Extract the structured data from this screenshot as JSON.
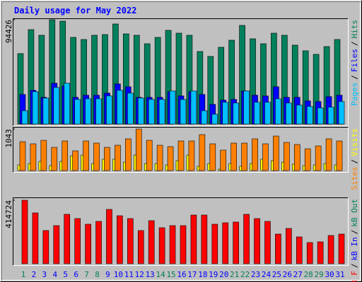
{
  "chart_data": {
    "type": "bar",
    "title": "Daily usage for May 2022",
    "categories": [
      "1",
      "2",
      "3",
      "4",
      "5",
      "6",
      "7",
      "8",
      "9",
      "10",
      "11",
      "12",
      "13",
      "14",
      "15",
      "16",
      "17",
      "18",
      "19",
      "20",
      "21",
      "22",
      "23",
      "24",
      "25",
      "26",
      "27",
      "28",
      "29",
      "30",
      "31"
    ],
    "category_colors": [
      "#00805c",
      "#0000ff",
      "#0000ff",
      "#0000ff",
      "#0000ff",
      "#0000ff",
      "#00805c",
      "#00805c",
      "#0000ff",
      "#0000ff",
      "#0000ff",
      "#0000ff",
      "#0000ff",
      "#00805c",
      "#00805c",
      "#0000ff",
      "#0000ff",
      "#0000ff",
      "#0000ff",
      "#0000ff",
      "#00805c",
      "#00805c",
      "#0000ff",
      "#0000ff",
      "#0000ff",
      "#0000ff",
      "#0000ff",
      "#00805c",
      "#00805c",
      "#0000ff",
      "#0000ff"
    ],
    "legend_separator": "/",
    "panels": [
      {
        "ylim": [
          0,
          94426
        ],
        "yticks": [
          94426
        ],
        "series": [
          {
            "name": "Pages",
            "color": "#00c0ff",
            "values": [
              12120,
              29350,
              23610,
              33180,
              37000,
              22330,
              22970,
              22970,
              25520,
              30620,
              28070,
              23610,
              22330,
              22330,
              29990,
              22330,
              29990,
              12120,
              8930,
              19780,
              19140,
              29990,
              19780,
              19780,
              22970,
              19140,
              17230,
              15950,
              14670,
              15310,
              20420
            ]
          },
          {
            "name": "Files",
            "color": "#0000ff",
            "values": [
              26800,
              30620,
              24240,
              37000,
              34450,
              24240,
              26160,
              26160,
              28070,
              36370,
              33810,
              24240,
              24240,
              24240,
              29350,
              25520,
              29350,
              26800,
              17860,
              21690,
              22330,
              29990,
              26160,
              25520,
              33810,
              24240,
              24240,
              21050,
              20420,
              24880,
              26160
            ]
          },
          {
            "name": "Hits",
            "color": "#00805c",
            "values": [
              63800,
              85490,
              80390,
              94426,
              93150,
              78470,
              76560,
              80390,
              81030,
              90600,
              81660,
              80390,
              72730,
              78470,
              84850,
              82300,
              80390,
              65710,
              61250,
              69540,
              75920,
              89320,
              77200,
              72730,
              82300,
              80390,
              71460,
              66350,
              63160,
              70180,
              76560
            ]
          }
        ]
      },
      {
        "ylim": [
          0,
          1043
        ],
        "yticks": [
          1043
        ],
        "series": [
          {
            "name": "Sites",
            "color": "#ff8000",
            "values": [
              725,
              672,
              760,
              583,
              743,
              495,
              743,
              690,
              583,
              636,
              796,
              1043,
              760,
              636,
              601,
              743,
              743,
              902,
              672,
              513,
              690,
              690,
              796,
              672,
              866,
              707,
              654,
              548,
              619,
              796,
              743
            ]
          },
          {
            "name": "Visits",
            "color": "#ffff00",
            "values": [
              141,
              177,
              230,
              124,
              230,
              371,
              389,
              177,
              283,
              283,
              212,
              389,
              177,
              177,
              141,
              248,
              389,
              106,
              177,
              35,
              177,
              106,
              177,
              283,
              248,
              212,
              159,
              124,
              141,
              177,
              141
            ]
          }
        ]
      },
      {
        "ylim": [
          0,
          414724
        ],
        "yticks": [
          414724
        ],
        "series": [
          {
            "name": "kB F",
            "color": "#ff0000",
            "values": [
              414724,
              331800,
              216600,
              248800,
              322600,
              294900,
              258000,
              276500,
              354800,
              313300,
              294900,
              216600,
              281100,
              235000,
              248800,
              248800,
              318000,
              318000,
              258000,
              267300,
              271900,
              322600,
              294900,
              276500,
              193500,
              230400,
              175100,
              138200,
              142800,
              184300,
              193500
            ]
          },
          {
            "name": "kB In",
            "color": "#0000ff"
          },
          {
            "name": "kB Out",
            "color": "#00805c"
          }
        ]
      }
    ]
  }
}
